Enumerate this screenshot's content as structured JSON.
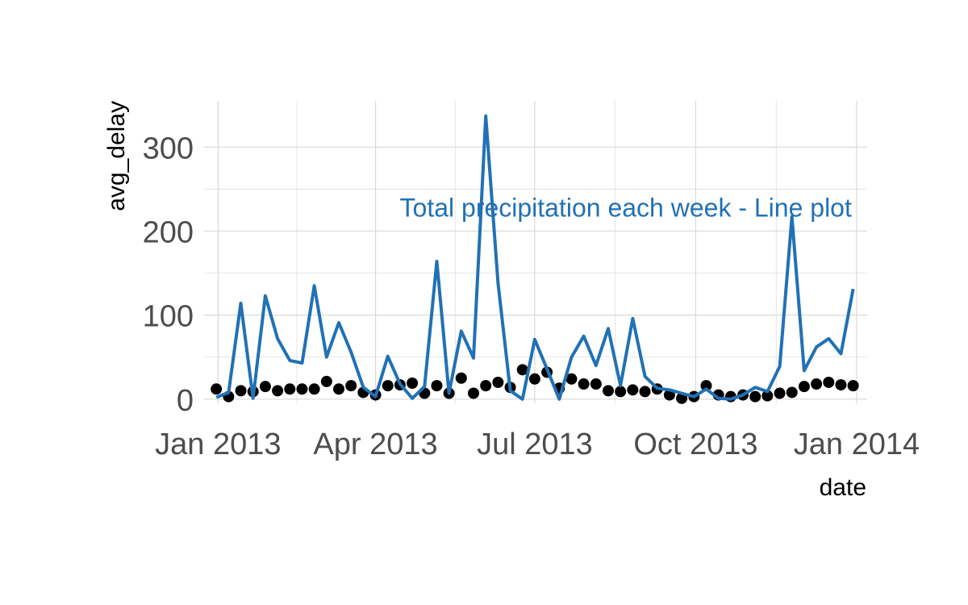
{
  "chart_data": {
    "type": "line",
    "title": "",
    "xlabel": "date",
    "ylabel": "avg_delay",
    "xlim": [
      "2012-12-24",
      "2014-01-07"
    ],
    "ylim": [
      -5,
      355
    ],
    "grid": true,
    "x_ticks": [
      "2013-01-01",
      "2013-04-01",
      "2013-07-01",
      "2013-10-01",
      "2014-01-01"
    ],
    "x_tick_labels": [
      "Jan 2013",
      "Apr 2013",
      "Jul 2013",
      "Oct 2013",
      "Jan 2014"
    ],
    "y_ticks": [
      0,
      100,
      200,
      300
    ],
    "y_tick_labels": [
      "0",
      "100",
      "200",
      "300"
    ],
    "annotation": {
      "text": "Total precipitation each week - Line plot",
      "x": "2013-08-22",
      "y": 228,
      "color": "#2171b5"
    },
    "colors": {
      "line": "#2171b5",
      "points": "#000000",
      "grid": "#d9d9d9"
    },
    "series": [
      {
        "type": "scatter",
        "x": [
          "2012-12-31",
          "2013-01-07",
          "2013-01-14",
          "2013-01-21",
          "2013-01-28",
          "2013-02-04",
          "2013-02-11",
          "2013-02-18",
          "2013-02-25",
          "2013-03-04",
          "2013-03-11",
          "2013-03-18",
          "2013-03-25",
          "2013-04-01",
          "2013-04-08",
          "2013-04-15",
          "2013-04-22",
          "2013-04-29",
          "2013-05-06",
          "2013-05-13",
          "2013-05-20",
          "2013-05-27",
          "2013-06-03",
          "2013-06-10",
          "2013-06-17",
          "2013-06-24",
          "2013-07-01",
          "2013-07-08",
          "2013-07-15",
          "2013-07-22",
          "2013-07-29",
          "2013-08-05",
          "2013-08-12",
          "2013-08-19",
          "2013-08-26",
          "2013-09-02",
          "2013-09-09",
          "2013-09-16",
          "2013-09-23",
          "2013-09-30",
          "2013-10-07",
          "2013-10-14",
          "2013-10-21",
          "2013-10-28",
          "2013-11-04",
          "2013-11-11",
          "2013-11-18",
          "2013-11-25",
          "2013-12-02",
          "2013-12-09",
          "2013-12-16",
          "2013-12-23",
          "2013-12-30"
        ],
        "y": [
          12,
          3,
          10,
          9,
          15,
          10,
          12,
          12,
          12,
          21,
          12,
          16,
          8,
          5,
          16,
          17,
          19,
          7,
          16,
          7,
          25,
          7,
          16,
          20,
          14,
          35,
          24,
          32,
          13,
          24,
          18,
          18,
          10,
          9,
          11,
          9,
          12,
          5,
          1,
          3,
          16,
          5,
          3,
          5,
          3,
          4,
          7,
          8,
          15,
          18,
          20,
          17,
          16
        ]
      },
      {
        "type": "line",
        "x": [
          "2012-12-31",
          "2013-01-07",
          "2013-01-14",
          "2013-01-21",
          "2013-01-28",
          "2013-02-04",
          "2013-02-11",
          "2013-02-18",
          "2013-02-25",
          "2013-03-04",
          "2013-03-11",
          "2013-03-18",
          "2013-03-25",
          "2013-04-01",
          "2013-04-08",
          "2013-04-15",
          "2013-04-22",
          "2013-04-29",
          "2013-05-06",
          "2013-05-13",
          "2013-05-20",
          "2013-05-27",
          "2013-06-03",
          "2013-06-10",
          "2013-06-17",
          "2013-06-24",
          "2013-07-01",
          "2013-07-08",
          "2013-07-15",
          "2013-07-22",
          "2013-07-29",
          "2013-08-05",
          "2013-08-12",
          "2013-08-19",
          "2013-08-26",
          "2013-09-02",
          "2013-09-09",
          "2013-09-16",
          "2013-09-23",
          "2013-09-30",
          "2013-10-07",
          "2013-10-14",
          "2013-10-21",
          "2013-10-28",
          "2013-11-04",
          "2013-11-11",
          "2013-11-18",
          "2013-11-25",
          "2013-12-02",
          "2013-12-09",
          "2013-12-16",
          "2013-12-23",
          "2013-12-30"
        ],
        "y": [
          2,
          8,
          114,
          1,
          123,
          72,
          46,
          43,
          135,
          50,
          91,
          56,
          14,
          3,
          51,
          18,
          1,
          15,
          164,
          7,
          81,
          49,
          337,
          138,
          10,
          0,
          71,
          36,
          0,
          50,
          75,
          40,
          84,
          16,
          96,
          27,
          13,
          11,
          7,
          3,
          12,
          1,
          0,
          5,
          14,
          9,
          39,
          217,
          34,
          62,
          72,
          54,
          131
        ]
      }
    ]
  }
}
